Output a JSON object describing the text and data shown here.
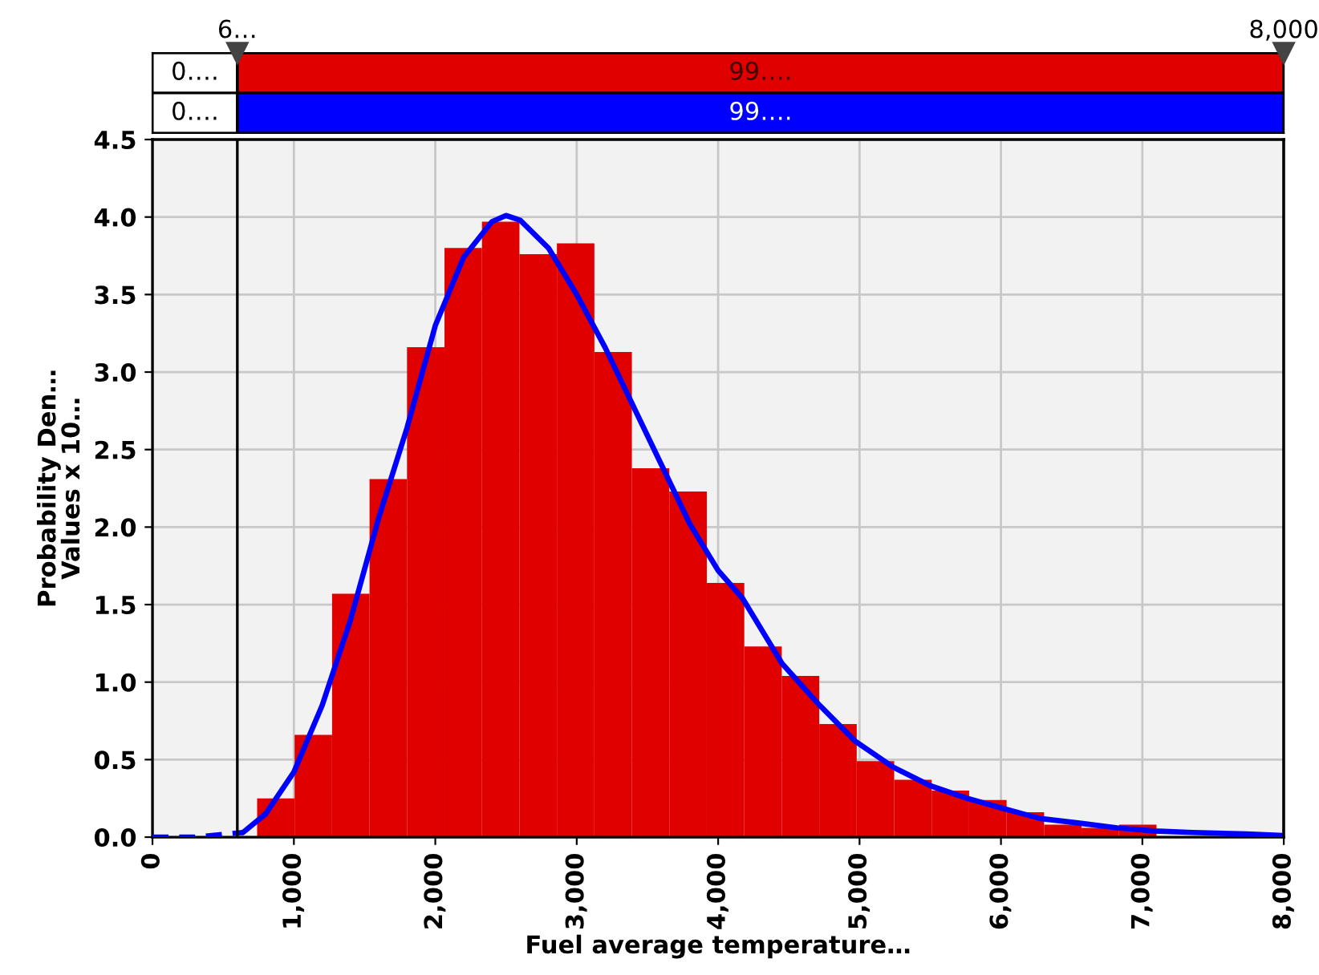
{
  "chart_data": {
    "type": "histogram",
    "xlabel": "Fuel average temperature…",
    "ylabel": "Probability Den…\nValues x 10…",
    "bins": [
      740,
      1005,
      1270,
      1535,
      1800,
      2065,
      2330,
      2595,
      2860,
      3125,
      3390,
      3655,
      3920,
      4185,
      4450,
      4715,
      4980,
      5245,
      5510,
      5775,
      6040,
      6305,
      6570,
      6835,
      7100,
      7365,
      7630,
      7895
    ],
    "values": [
      0.25,
      0.66,
      1.57,
      2.31,
      3.16,
      3.8,
      3.97,
      3.76,
      3.83,
      3.13,
      2.38,
      2.23,
      1.64,
      1.23,
      1.04,
      0.73,
      0.49,
      0.37,
      0.3,
      0.24,
      0.16,
      0.08,
      0.06,
      0.08,
      null,
      null,
      null
    ],
    "color": "#e00000",
    "series": [
      {
        "type": "line",
        "color": "#0000ff",
        "line_style": "dashed",
        "x": [
          0,
          300,
          640
        ],
        "values": [
          0,
          0,
          0.03
        ]
      },
      {
        "type": "line",
        "color": "#0000ff",
        "line_style": "solid",
        "x": [
          640,
          800,
          1000,
          1200,
          1400,
          1600,
          1800,
          2000,
          2200,
          2400,
          2500,
          2600,
          2800,
          3000,
          3200,
          3400,
          3600,
          3800,
          4000,
          4173,
          4452,
          4718,
          4968,
          5240,
          5505,
          5763,
          6035,
          6280,
          6557,
          6822,
          7085,
          7355,
          7737,
          8000
        ],
        "values": [
          0.03,
          0.15,
          0.42,
          0.85,
          1.4,
          2.06,
          2.64,
          3.3,
          3.74,
          3.97,
          4.01,
          3.98,
          3.8,
          3.5,
          3.16,
          2.78,
          2.4,
          2.02,
          1.72,
          1.54,
          1.12,
          0.85,
          0.62,
          0.45,
          0.33,
          0.25,
          0.18,
          0.12,
          0.09,
          0.06,
          0.04,
          0.03,
          0.02,
          0.01
        ]
      }
    ],
    "xlim": [
      0,
      8000
    ],
    "xticks": [
      0,
      {
        "value": 1000,
        "label": "1,000"
      },
      {
        "value": 2000,
        "label": "2,000"
      },
      {
        "value": 3000,
        "label": "3,000"
      },
      {
        "value": 4000,
        "label": "4,000"
      },
      {
        "value": 5000,
        "label": "5,000"
      },
      {
        "value": 6000,
        "label": "6,000"
      },
      {
        "value": 7000,
        "label": "7,000"
      },
      {
        "value": 8000,
        "label": "8,000"
      }
    ],
    "ylim": [
      0,
      4.5
    ],
    "yticks": [
      {
        "value": 0,
        "label": "0.0"
      },
      0.5,
      {
        "value": 1,
        "label": "1.0"
      },
      1.5,
      {
        "value": 2,
        "label": "2.0"
      },
      2.5,
      {
        "value": 3,
        "label": "3.0"
      },
      3.5,
      {
        "value": 4,
        "label": "4.0"
      },
      4.5
    ],
    "grid": true,
    "ref_lines": [
      {
        "axis": "x",
        "value": 600,
        "label": "6…"
      },
      {
        "axis": "x",
        "value": 8000,
        "label": "8,000"
      }
    ],
    "annotations": [
      "0….",
      "99….",
      "0….",
      "99…."
    ]
  }
}
